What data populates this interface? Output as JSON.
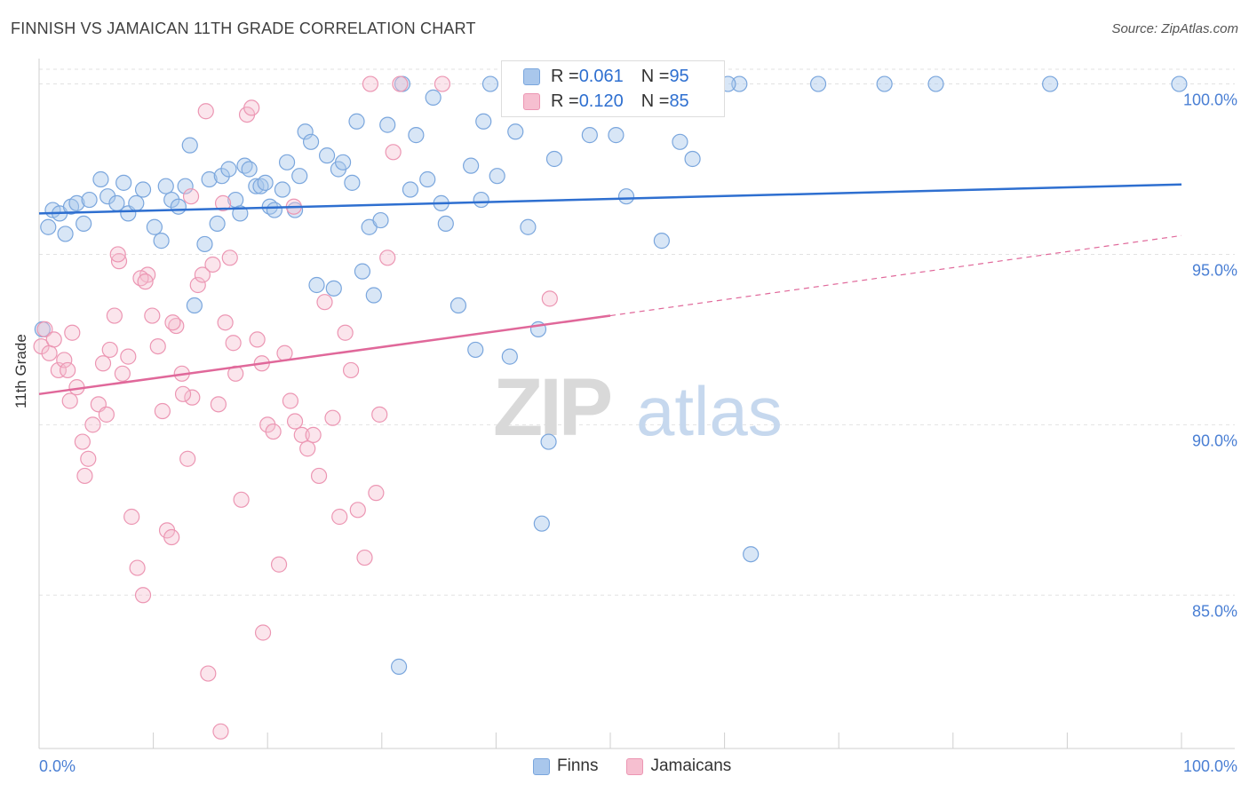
{
  "title": "FINNISH VS JAMAICAN 11TH GRADE CORRELATION CHART",
  "source": "Source: ZipAtlas.com",
  "watermark": {
    "part1": "ZIP",
    "part2": "atlas"
  },
  "legend_top": {
    "rows": [
      {
        "r_label": "R = ",
        "r_value": "0.061",
        "n_label": "N = ",
        "n_value": "95"
      },
      {
        "r_label": "R = ",
        "r_value": "0.120",
        "n_label": "N = ",
        "n_value": "85"
      }
    ]
  },
  "legend_bottom": {
    "finns": "Finns",
    "jamaicans": "Jamaicans"
  },
  "colors": {
    "finns": "#7aa6dd",
    "finns_fill": "#a9c7ec",
    "finns_line": "#2e6fd0",
    "jamaicans": "#ec96b3",
    "jamaicans_fill": "#f6bfd0",
    "jamaicans_line": "#e0689a",
    "tick_label": "#4a7fd4"
  },
  "chart_data": {
    "type": "scatter",
    "title": "FINNISH VS JAMAICAN 11TH GRADE CORRELATION CHART",
    "xlabel": "",
    "ylabel": "11th Grade",
    "xlim": [
      0,
      100
    ],
    "ylim": [
      80.5,
      100.9
    ],
    "x_tick_labels": [
      "0.0%",
      "100.0%"
    ],
    "y_ticks": [
      85,
      90,
      95,
      100
    ],
    "y_tick_labels": [
      "85.0%",
      "90.0%",
      "95.0%",
      "100.0%"
    ],
    "grid": true,
    "legend_position": "top-center",
    "series": [
      {
        "name": "Finns",
        "R": 0.061,
        "N": 95,
        "trend": {
          "x": [
            0,
            100
          ],
          "y": [
            96.2,
            97.05
          ]
        },
        "points": [
          [
            0.3,
            92.8
          ],
          [
            0.8,
            95.8
          ],
          [
            1.2,
            96.3
          ],
          [
            1.8,
            96.2
          ],
          [
            2.3,
            95.6
          ],
          [
            2.8,
            96.4
          ],
          [
            3.3,
            96.5
          ],
          [
            3.9,
            95.9
          ],
          [
            4.4,
            96.6
          ],
          [
            5.4,
            97.2
          ],
          [
            6.0,
            96.7
          ],
          [
            6.8,
            96.5
          ],
          [
            7.4,
            97.1
          ],
          [
            7.8,
            96.2
          ],
          [
            8.5,
            96.5
          ],
          [
            9.1,
            96.9
          ],
          [
            10.1,
            95.8
          ],
          [
            10.7,
            95.4
          ],
          [
            11.1,
            97.0
          ],
          [
            11.6,
            96.6
          ],
          [
            12.2,
            96.4
          ],
          [
            12.8,
            97.0
          ],
          [
            13.2,
            98.2
          ],
          [
            13.6,
            93.5
          ],
          [
            14.5,
            95.3
          ],
          [
            14.9,
            97.2
          ],
          [
            15.6,
            95.9
          ],
          [
            16.0,
            97.3
          ],
          [
            16.6,
            97.5
          ],
          [
            17.2,
            96.6
          ],
          [
            17.6,
            96.2
          ],
          [
            18.0,
            97.6
          ],
          [
            18.4,
            97.5
          ],
          [
            19.0,
            97.0
          ],
          [
            19.4,
            97.0
          ],
          [
            19.8,
            97.1
          ],
          [
            20.2,
            96.4
          ],
          [
            20.6,
            96.3
          ],
          [
            21.3,
            96.9
          ],
          [
            21.7,
            97.7
          ],
          [
            22.4,
            96.3
          ],
          [
            22.8,
            97.3
          ],
          [
            23.3,
            98.6
          ],
          [
            23.8,
            98.3
          ],
          [
            24.3,
            94.1
          ],
          [
            25.2,
            97.9
          ],
          [
            25.8,
            94.0
          ],
          [
            26.2,
            97.5
          ],
          [
            26.6,
            97.7
          ],
          [
            27.4,
            97.1
          ],
          [
            27.8,
            98.9
          ],
          [
            28.3,
            94.5
          ],
          [
            28.9,
            95.8
          ],
          [
            29.3,
            93.8
          ],
          [
            29.9,
            96.0
          ],
          [
            30.5,
            98.8
          ],
          [
            31.8,
            100.0
          ],
          [
            32.5,
            96.9
          ],
          [
            33.0,
            98.5
          ],
          [
            34.0,
            97.2
          ],
          [
            34.5,
            99.6
          ],
          [
            35.2,
            96.5
          ],
          [
            35.6,
            95.9
          ],
          [
            36.7,
            93.5
          ],
          [
            37.8,
            97.6
          ],
          [
            38.2,
            92.2
          ],
          [
            38.7,
            96.6
          ],
          [
            38.9,
            98.9
          ],
          [
            39.5,
            100.0
          ],
          [
            40.1,
            97.3
          ],
          [
            41.2,
            92.0
          ],
          [
            41.7,
            98.6
          ],
          [
            42.8,
            95.8
          ],
          [
            43.7,
            92.8
          ],
          [
            44.0,
            87.1
          ],
          [
            44.6,
            89.5
          ],
          [
            45.1,
            97.8
          ],
          [
            46.5,
            100.0
          ],
          [
            48.2,
            98.5
          ],
          [
            50.5,
            98.5
          ],
          [
            51.4,
            96.7
          ],
          [
            54.5,
            95.4
          ],
          [
            55.2,
            100.0
          ],
          [
            56.1,
            98.3
          ],
          [
            57.2,
            97.8
          ],
          [
            61.3,
            100.0
          ],
          [
            62.3,
            86.2
          ],
          [
            68.2,
            100.0
          ],
          [
            74.0,
            100.0
          ],
          [
            78.5,
            100.0
          ],
          [
            88.5,
            100.0
          ],
          [
            31.5,
            82.9
          ],
          [
            60.3,
            100.0
          ],
          [
            99.8,
            100.0
          ],
          [
            58.5,
            100.0
          ]
        ]
      },
      {
        "name": "Jamaicans",
        "R": 0.12,
        "N": 85,
        "trend": {
          "x": [
            0,
            50,
            100
          ],
          "y": [
            90.9,
            93.2,
            95.55
          ],
          "solid_until_x": 50
        },
        "points": [
          [
            0.2,
            92.3
          ],
          [
            0.5,
            92.8
          ],
          [
            0.9,
            92.1
          ],
          [
            1.3,
            92.5
          ],
          [
            1.7,
            91.6
          ],
          [
            2.2,
            91.9
          ],
          [
            2.5,
            91.6
          ],
          [
            2.9,
            92.7
          ],
          [
            3.3,
            91.1
          ],
          [
            3.8,
            89.5
          ],
          [
            4.3,
            89.0
          ],
          [
            4.7,
            90.0
          ],
          [
            5.2,
            90.6
          ],
          [
            5.6,
            91.8
          ],
          [
            6.2,
            92.2
          ],
          [
            6.6,
            93.2
          ],
          [
            7.0,
            94.8
          ],
          [
            7.3,
            91.5
          ],
          [
            7.8,
            92.0
          ],
          [
            8.1,
            87.3
          ],
          [
            8.6,
            85.8
          ],
          [
            9.1,
            85.0
          ],
          [
            9.5,
            94.4
          ],
          [
            9.9,
            93.2
          ],
          [
            10.4,
            92.3
          ],
          [
            10.8,
            90.4
          ],
          [
            11.2,
            86.9
          ],
          [
            11.6,
            86.7
          ],
          [
            12.0,
            92.9
          ],
          [
            12.5,
            91.5
          ],
          [
            13.0,
            89.0
          ],
          [
            13.4,
            90.8
          ],
          [
            13.9,
            94.1
          ],
          [
            14.3,
            94.4
          ],
          [
            14.8,
            82.7
          ],
          [
            15.2,
            94.7
          ],
          [
            15.7,
            90.6
          ],
          [
            16.3,
            93.0
          ],
          [
            16.7,
            94.9
          ],
          [
            17.2,
            91.5
          ],
          [
            17.7,
            87.8
          ],
          [
            18.2,
            99.1
          ],
          [
            18.6,
            99.3
          ],
          [
            19.1,
            92.5
          ],
          [
            19.5,
            91.8
          ],
          [
            20.0,
            90.0
          ],
          [
            20.5,
            89.8
          ],
          [
            21.0,
            85.9
          ],
          [
            21.5,
            92.1
          ],
          [
            22.0,
            90.7
          ],
          [
            22.4,
            90.1
          ],
          [
            23.0,
            89.7
          ],
          [
            23.5,
            89.3
          ],
          [
            24.0,
            89.7
          ],
          [
            24.5,
            88.5
          ],
          [
            25.0,
            93.6
          ],
          [
            25.7,
            90.2
          ],
          [
            26.3,
            87.3
          ],
          [
            26.8,
            92.7
          ],
          [
            27.3,
            91.6
          ],
          [
            27.9,
            87.5
          ],
          [
            28.5,
            86.1
          ],
          [
            29.0,
            100.0
          ],
          [
            29.8,
            90.3
          ],
          [
            30.5,
            94.9
          ],
          [
            31.0,
            98.0
          ],
          [
            15.9,
            81.0
          ],
          [
            8.9,
            94.3
          ],
          [
            5.9,
            90.3
          ],
          [
            6.9,
            95.0
          ],
          [
            9.3,
            94.2
          ],
          [
            11.7,
            93.0
          ],
          [
            13.3,
            96.7
          ],
          [
            14.6,
            99.2
          ],
          [
            16.1,
            96.5
          ],
          [
            17.0,
            92.4
          ],
          [
            19.6,
            83.9
          ],
          [
            12.6,
            90.9
          ],
          [
            4.0,
            88.5
          ],
          [
            2.7,
            90.7
          ],
          [
            22.3,
            96.4
          ],
          [
            29.5,
            88.0
          ],
          [
            31.6,
            100.0
          ],
          [
            44.7,
            93.7
          ],
          [
            35.3,
            100.0
          ]
        ]
      }
    ]
  }
}
